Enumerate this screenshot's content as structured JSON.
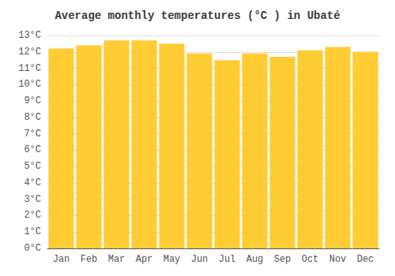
{
  "chart_data": {
    "type": "bar",
    "title": "Average monthly temperatures (°C ) in Ubaté",
    "categories": [
      "Jan",
      "Feb",
      "Mar",
      "Apr",
      "May",
      "Jun",
      "Jul",
      "Aug",
      "Sep",
      "Oct",
      "Nov",
      "Dec"
    ],
    "values": [
      12.2,
      12.4,
      12.7,
      12.7,
      12.5,
      11.9,
      11.5,
      11.9,
      11.7,
      12.1,
      12.3,
      12.0
    ],
    "color": "#FFCC33",
    "ylim": [
      0,
      13
    ],
    "yticks": [
      {
        "value": 0,
        "label": "0°C"
      },
      {
        "value": 1,
        "label": "1°C"
      },
      {
        "value": 2,
        "label": "2°C"
      },
      {
        "value": 3,
        "label": "3°C"
      },
      {
        "value": 4,
        "label": "4°C"
      },
      {
        "value": 5,
        "label": "5°C"
      },
      {
        "value": 6,
        "label": "6°C"
      },
      {
        "value": 7,
        "label": "7°C"
      },
      {
        "value": 8,
        "label": "8°C"
      },
      {
        "value": 9,
        "label": "9°C"
      },
      {
        "value": 10,
        "label": "10°C"
      },
      {
        "value": 11,
        "label": "11°C"
      },
      {
        "value": 12,
        "label": "12°C"
      },
      {
        "value": 13,
        "label": "13°C"
      }
    ],
    "grid": true
  }
}
